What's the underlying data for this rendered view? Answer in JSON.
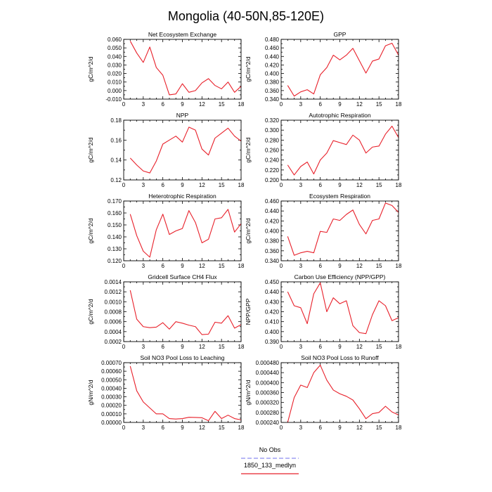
{
  "figure_title": "Mongolia (40-50N,85-120E)",
  "legend": {
    "entries": [
      {
        "label": "No Obs",
        "color": "#8c8cf0",
        "dashed": true
      },
      {
        "label": "1850_133_medlyn",
        "color": "#e8202a",
        "dashed": false
      }
    ]
  },
  "chart_data": [
    {
      "type": "line",
      "title": "Net Ecosystem Exchange",
      "ylabel": "gC/m^2/d",
      "xlim": [
        0,
        18
      ],
      "xticks": [
        0,
        3,
        6,
        9,
        12,
        15,
        18
      ],
      "ylim": [
        -0.01,
        0.06
      ],
      "yticks": [
        -0.01,
        0.0,
        0.01,
        0.02,
        0.03,
        0.04,
        0.05,
        0.06
      ],
      "yticklabels": [
        "-0.010",
        "0.000",
        "0.010",
        "0.020",
        "0.030",
        "0.040",
        "0.050",
        "0.060"
      ],
      "x": [
        1,
        2,
        3,
        4,
        5,
        6,
        7,
        8,
        9,
        10,
        11,
        12,
        13,
        14,
        15,
        16,
        17,
        18
      ],
      "series": [
        {
          "values": [
            0.058,
            0.044,
            0.033,
            0.051,
            0.027,
            0.018,
            -0.005,
            -0.004,
            0.008,
            -0.002,
            0.0,
            0.009,
            0.014,
            0.006,
            0.002,
            0.01,
            -0.002,
            0.005
          ]
        }
      ]
    },
    {
      "type": "line",
      "title": "GPP",
      "ylabel": "gC/m^2/d",
      "xlim": [
        0,
        18
      ],
      "xticks": [
        0,
        3,
        6,
        9,
        12,
        15,
        18
      ],
      "ylim": [
        0.34,
        0.48
      ],
      "yticks": [
        0.34,
        0.36,
        0.38,
        0.4,
        0.42,
        0.44,
        0.46,
        0.48
      ],
      "yticklabels": [
        "0.340",
        "0.360",
        "0.380",
        "0.400",
        "0.420",
        "0.440",
        "0.460",
        "0.480"
      ],
      "x": [
        1,
        2,
        3,
        4,
        5,
        6,
        7,
        8,
        9,
        10,
        11,
        12,
        13,
        14,
        15,
        16,
        17,
        18
      ],
      "series": [
        {
          "values": [
            0.372,
            0.347,
            0.357,
            0.362,
            0.352,
            0.397,
            0.414,
            0.443,
            0.432,
            0.443,
            0.459,
            0.43,
            0.401,
            0.429,
            0.434,
            0.465,
            0.471,
            0.443
          ]
        }
      ]
    },
    {
      "type": "line",
      "title": "NPP",
      "ylabel": "gC/m^2/d",
      "xlim": [
        0,
        18
      ],
      "xticks": [
        0,
        3,
        6,
        9,
        12,
        15,
        18
      ],
      "ylim": [
        0.12,
        0.18
      ],
      "yticks": [
        0.12,
        0.14,
        0.16,
        0.18
      ],
      "yticklabels": [
        "0.12",
        "0.14",
        "0.16",
        "0.18"
      ],
      "x": [
        1,
        2,
        3,
        4,
        5,
        6,
        7,
        8,
        9,
        10,
        11,
        12,
        13,
        14,
        15,
        16,
        17,
        18
      ],
      "series": [
        {
          "values": [
            0.142,
            0.135,
            0.129,
            0.127,
            0.139,
            0.156,
            0.16,
            0.164,
            0.158,
            0.173,
            0.17,
            0.151,
            0.145,
            0.162,
            0.167,
            0.172,
            0.164,
            0.159
          ]
        }
      ]
    },
    {
      "type": "line",
      "title": "Autotrophic Respiration",
      "ylabel": "gC/m^2/d",
      "xlim": [
        0,
        18
      ],
      "xticks": [
        0,
        3,
        6,
        9,
        12,
        15,
        18
      ],
      "ylim": [
        0.2,
        0.32
      ],
      "yticks": [
        0.2,
        0.22,
        0.24,
        0.26,
        0.28,
        0.3,
        0.32
      ],
      "yticklabels": [
        "0.200",
        "0.220",
        "0.240",
        "0.260",
        "0.280",
        "0.300",
        "0.320"
      ],
      "x": [
        1,
        2,
        3,
        4,
        5,
        6,
        7,
        8,
        9,
        10,
        11,
        12,
        13,
        14,
        15,
        16,
        17,
        18
      ],
      "series": [
        {
          "values": [
            0.23,
            0.21,
            0.227,
            0.236,
            0.212,
            0.24,
            0.254,
            0.279,
            0.275,
            0.271,
            0.29,
            0.28,
            0.254,
            0.266,
            0.268,
            0.292,
            0.308,
            0.285
          ]
        }
      ]
    },
    {
      "type": "line",
      "title": "Heterotrophic Respiration",
      "ylabel": "gC/m^2/d",
      "xlim": [
        0,
        18
      ],
      "xticks": [
        0,
        3,
        6,
        9,
        12,
        15,
        18
      ],
      "ylim": [
        0.12,
        0.17
      ],
      "yticks": [
        0.12,
        0.13,
        0.14,
        0.15,
        0.16,
        0.17
      ],
      "yticklabels": [
        "0.120",
        "0.130",
        "0.140",
        "0.150",
        "0.160",
        "0.170"
      ],
      "x": [
        1,
        2,
        3,
        4,
        5,
        6,
        7,
        8,
        9,
        10,
        11,
        12,
        13,
        14,
        15,
        16,
        17,
        18
      ],
      "series": [
        {
          "values": [
            0.159,
            0.141,
            0.128,
            0.123,
            0.146,
            0.159,
            0.142,
            0.145,
            0.147,
            0.162,
            0.152,
            0.135,
            0.138,
            0.155,
            0.156,
            0.163,
            0.144,
            0.151
          ]
        }
      ]
    },
    {
      "type": "line",
      "title": "Ecosystem Respiration",
      "ylabel": "gC/m^2/d",
      "xlim": [
        0,
        18
      ],
      "xticks": [
        0,
        3,
        6,
        9,
        12,
        15,
        18
      ],
      "ylim": [
        0.34,
        0.46
      ],
      "yticks": [
        0.34,
        0.36,
        0.38,
        0.4,
        0.42,
        0.44,
        0.46
      ],
      "yticklabels": [
        "0.340",
        "0.360",
        "0.380",
        "0.400",
        "0.420",
        "0.440",
        "0.460"
      ],
      "x": [
        1,
        2,
        3,
        4,
        5,
        6,
        7,
        8,
        9,
        10,
        11,
        12,
        13,
        14,
        15,
        16,
        17,
        18
      ],
      "series": [
        {
          "values": [
            0.389,
            0.351,
            0.356,
            0.359,
            0.356,
            0.399,
            0.397,
            0.424,
            0.421,
            0.433,
            0.442,
            0.413,
            0.394,
            0.421,
            0.424,
            0.456,
            0.451,
            0.437
          ]
        }
      ]
    },
    {
      "type": "line",
      "title": "Gridcell Surface CH4 Flux",
      "ylabel": "gC/m^2/d",
      "xlim": [
        0,
        18
      ],
      "xticks": [
        0,
        3,
        6,
        9,
        12,
        15,
        18
      ],
      "ylim": [
        0.0002,
        0.0014
      ],
      "yticks": [
        0.0002,
        0.0004,
        0.0006,
        0.0008,
        0.001,
        0.0012,
        0.0014
      ],
      "yticklabels": [
        "0.0002",
        "0.0004",
        "0.0006",
        "0.0008",
        "0.0010",
        "0.0012",
        "0.0014"
      ],
      "x": [
        1,
        2,
        3,
        4,
        5,
        6,
        7,
        8,
        9,
        10,
        11,
        12,
        13,
        14,
        15,
        16,
        17,
        18
      ],
      "series": [
        {
          "values": [
            0.00123,
            0.00065,
            0.0005,
            0.00048,
            0.00049,
            0.00058,
            0.00045,
            0.0006,
            0.00057,
            0.00053,
            0.0005,
            0.00034,
            0.00035,
            0.00059,
            0.00057,
            0.00072,
            0.00047,
            0.00054
          ]
        }
      ]
    },
    {
      "type": "line",
      "title": "Carbon Use Efficiency (NPP/GPP)",
      "ylabel": "NPP/GPP",
      "xlim": [
        0,
        18
      ],
      "xticks": [
        0,
        3,
        6,
        9,
        12,
        15,
        18
      ],
      "ylim": [
        0.39,
        0.45
      ],
      "yticks": [
        0.39,
        0.4,
        0.41,
        0.42,
        0.43,
        0.44,
        0.45
      ],
      "yticklabels": [
        "0.390",
        "0.400",
        "0.410",
        "0.420",
        "0.430",
        "0.440",
        "0.450"
      ],
      "x": [
        1,
        2,
        3,
        4,
        5,
        6,
        7,
        8,
        9,
        10,
        11,
        12,
        13,
        14,
        15,
        16,
        17,
        18
      ],
      "series": [
        {
          "values": [
            0.44,
            0.426,
            0.424,
            0.408,
            0.438,
            0.449,
            0.42,
            0.434,
            0.428,
            0.431,
            0.406,
            0.399,
            0.398,
            0.417,
            0.431,
            0.426,
            0.411,
            0.414
          ]
        }
      ]
    },
    {
      "type": "line",
      "title": "Soil NO3 Pool Loss to Leaching",
      "ylabel": "gN/m^2/d",
      "xlim": [
        0,
        18
      ],
      "xticks": [
        0,
        3,
        6,
        9,
        12,
        15,
        18
      ],
      "ylim": [
        0.0,
        0.0007
      ],
      "yticks": [
        0.0,
        0.0001,
        0.0002,
        0.0003,
        0.0004,
        0.0005,
        0.0006,
        0.0007
      ],
      "yticklabels": [
        "0.00000",
        "0.00010",
        "0.00020",
        "0.00030",
        "0.00040",
        "0.00050",
        "0.00060",
        "0.00070"
      ],
      "x": [
        1,
        2,
        3,
        4,
        5,
        6,
        7,
        8,
        9,
        10,
        11,
        12,
        13,
        14,
        15,
        16,
        17,
        18
      ],
      "series": [
        {
          "values": [
            0.00066,
            0.00037,
            0.00024,
            0.00017,
            0.0001,
            0.0001,
            4.5e-05,
            4e-05,
            4.5e-05,
            6e-05,
            5.8e-05,
            5.5e-05,
            2e-05,
            0.00013,
            4.5e-05,
            8.5e-05,
            4.5e-05,
            3e-05
          ]
        }
      ]
    },
    {
      "type": "line",
      "title": "Soil NO3 Pool Loss to Runoff",
      "ylabel": "gN/m^2/d",
      "xlim": [
        0,
        18
      ],
      "xticks": [
        0,
        3,
        6,
        9,
        12,
        15,
        18
      ],
      "ylim": [
        0.00024,
        0.00048
      ],
      "yticks": [
        0.00024,
        0.00028,
        0.00032,
        0.00036,
        0.0004,
        0.00044,
        0.00048
      ],
      "yticklabels": [
        "0.000240",
        "0.000280",
        "0.000320",
        "0.000360",
        "0.000400",
        "0.000440",
        "0.000480"
      ],
      "x": [
        1,
        2,
        3,
        4,
        5,
        6,
        7,
        8,
        9,
        10,
        11,
        12,
        13,
        14,
        15,
        16,
        17,
        18
      ],
      "series": [
        {
          "values": [
            0.00024,
            0.00034,
            0.00039,
            0.00038,
            0.00044,
            0.00047,
            0.00041,
            0.00037,
            0.000355,
            0.000345,
            0.00033,
            0.000295,
            0.000255,
            0.000275,
            0.00028,
            0.000305,
            0.000282,
            0.00027
          ]
        }
      ]
    }
  ]
}
